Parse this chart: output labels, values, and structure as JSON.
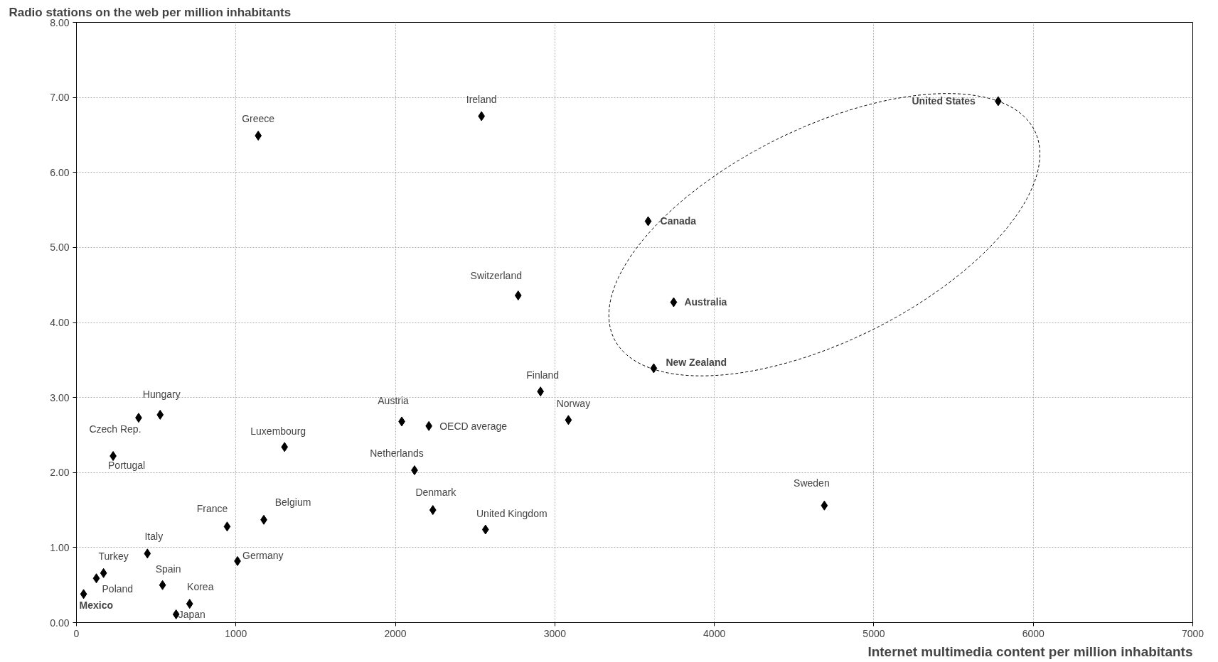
{
  "chart_data": {
    "type": "scatter",
    "ylabel": "Radio stations on the web per million inhabitants",
    "xlabel": "Internet multimedia content per million inhabitants",
    "x": [
      5780,
      2540,
      1140,
      3585,
      2770,
      3745,
      3620,
      2910,
      525,
      390,
      2040,
      2210,
      3085,
      1305,
      230,
      2120,
      4690,
      2235,
      1175,
      945,
      2565,
      445,
      1010,
      170,
      125,
      540,
      710,
      45,
      625
    ],
    "series": [
      {
        "color": "#000000",
        "values": [
          6.95,
          6.75,
          6.49,
          5.35,
          4.36,
          4.27,
          3.39,
          3.08,
          2.77,
          2.73,
          2.68,
          2.62,
          2.7,
          2.34,
          2.22,
          2.03,
          1.56,
          1.5,
          1.37,
          1.28,
          1.24,
          0.92,
          0.82,
          0.66,
          0.59,
          0.5,
          0.25,
          0.38,
          0.11
        ]
      }
    ],
    "marker": "diamond",
    "xlim": [
      0,
      7000
    ],
    "ylim": [
      0,
      8
    ],
    "xticks": [
      0,
      1000,
      2000,
      3000,
      4000,
      5000,
      6000,
      7000
    ],
    "yticks": [
      {
        "value": 0,
        "label": "0.00"
      },
      {
        "value": 1,
        "label": "1.00"
      },
      {
        "value": 2,
        "label": "2.00"
      },
      {
        "value": 3,
        "label": "3.00"
      },
      {
        "value": 4,
        "label": "4.00"
      },
      {
        "value": 5,
        "label": "5.00"
      },
      {
        "value": 6,
        "label": "6.00"
      },
      {
        "value": 7,
        "label": "7.00"
      },
      {
        "value": 8,
        "label": "8.00"
      }
    ],
    "grid": true,
    "annotations": [
      {
        "text": "United States",
        "x": 5780,
        "y": 6.95
      },
      {
        "text": "Ireland",
        "x": 2540,
        "y": 6.75
      },
      {
        "text": "Greece",
        "x": 1140,
        "y": 6.49
      },
      {
        "text": "Canada",
        "x": 3585,
        "y": 5.35
      },
      {
        "text": "Switzerland",
        "x": 2770,
        "y": 4.36
      },
      {
        "text": "Australia",
        "x": 3745,
        "y": 4.27
      },
      {
        "text": "New Zealand",
        "x": 3620,
        "y": 3.39
      },
      {
        "text": "Finland",
        "x": 2910,
        "y": 3.08
      },
      {
        "text": "Hungary",
        "x": 525,
        "y": 2.77
      },
      {
        "text": "Czech Rep.",
        "x": 390,
        "y": 2.73
      },
      {
        "text": "Austria",
        "x": 2040,
        "y": 2.68
      },
      {
        "text": "OECD average",
        "x": 2210,
        "y": 2.62
      },
      {
        "text": "Norway",
        "x": 3085,
        "y": 2.7
      },
      {
        "text": "Luxembourg",
        "x": 1305,
        "y": 2.34
      },
      {
        "text": "Portugal",
        "x": 230,
        "y": 2.22
      },
      {
        "text": "Netherlands",
        "x": 2120,
        "y": 2.03
      },
      {
        "text": "Sweden",
        "x": 4690,
        "y": 1.56
      },
      {
        "text": "Denmark",
        "x": 2235,
        "y": 1.5
      },
      {
        "text": "Belgium",
        "x": 1175,
        "y": 1.37
      },
      {
        "text": "France",
        "x": 945,
        "y": 1.28
      },
      {
        "text": "United Kingdom",
        "x": 2565,
        "y": 1.24
      },
      {
        "text": "Italy",
        "x": 445,
        "y": 0.92
      },
      {
        "text": "Germany",
        "x": 1010,
        "y": 0.82
      },
      {
        "text": "Turkey",
        "x": 170,
        "y": 0.66
      },
      {
        "text": "Poland",
        "x": 125,
        "y": 0.59
      },
      {
        "text": "Spain",
        "x": 540,
        "y": 0.5
      },
      {
        "text": "Korea",
        "x": 710,
        "y": 0.25
      },
      {
        "text": "Mexico",
        "x": 45,
        "y": 0.38
      },
      {
        "text": "Japan",
        "x": 625,
        "y": 0.11
      }
    ]
  }
}
